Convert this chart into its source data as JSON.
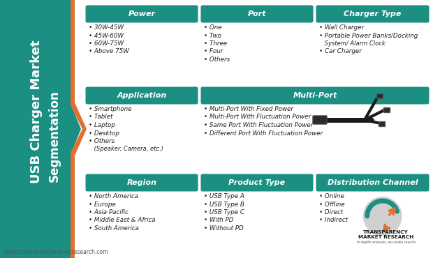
{
  "bg_color": "#ffffff",
  "teal": "#1a8f82",
  "orange": "#e07030",
  "white": "#ffffff",
  "dark": "#222222",
  "gray_text": "#555555",
  "sidebar_title": "USB Charger Market\nSegmentation",
  "footer_text": "www.transparencymarketresearch.com",
  "sections": [
    {
      "label": "Power",
      "col": 0,
      "row": 0,
      "items": [
        "30W-45W",
        "45W-60W",
        "60W-75W",
        "Above 75W"
      ]
    },
    {
      "label": "Port",
      "col": 1,
      "row": 0,
      "items": [
        "One",
        "Two",
        "Three",
        "Four",
        "Others"
      ]
    },
    {
      "label": "Charger Type",
      "col": 2,
      "row": 0,
      "items": [
        "Wall Charger",
        "Portable Power Banks/Docking\n System/ Alarm Clock",
        "Car Charger"
      ]
    },
    {
      "label": "Application",
      "col": 0,
      "row": 1,
      "items": [
        "Smartphone",
        "Tablet",
        "Laptop",
        "Desktop",
        "Others\n (Speaker, Camera, etc.)"
      ]
    },
    {
      "label": "Multi-Port",
      "col": 1,
      "row": 1,
      "colspan": 2,
      "items": [
        "Multi-Port With Fixed Power",
        "Multi-Port With Fluctuation Power",
        "Same Port With Fluctuation Power",
        "Different Port With Fluctuation Power"
      ]
    },
    {
      "label": "Region",
      "col": 0,
      "row": 2,
      "items": [
        "North America",
        "Europe",
        "Asia Pacific",
        "Middle East & Africa",
        "South America"
      ]
    },
    {
      "label": "Product Type",
      "col": 1,
      "row": 2,
      "items": [
        "USB Type A",
        "USB Type B",
        "USB Type C",
        "With PD",
        "Without PD"
      ]
    },
    {
      "label": "Distribution Channel",
      "col": 2,
      "row": 2,
      "items": [
        "Online",
        "Offline",
        "Direct",
        "Indirect"
      ]
    }
  ]
}
